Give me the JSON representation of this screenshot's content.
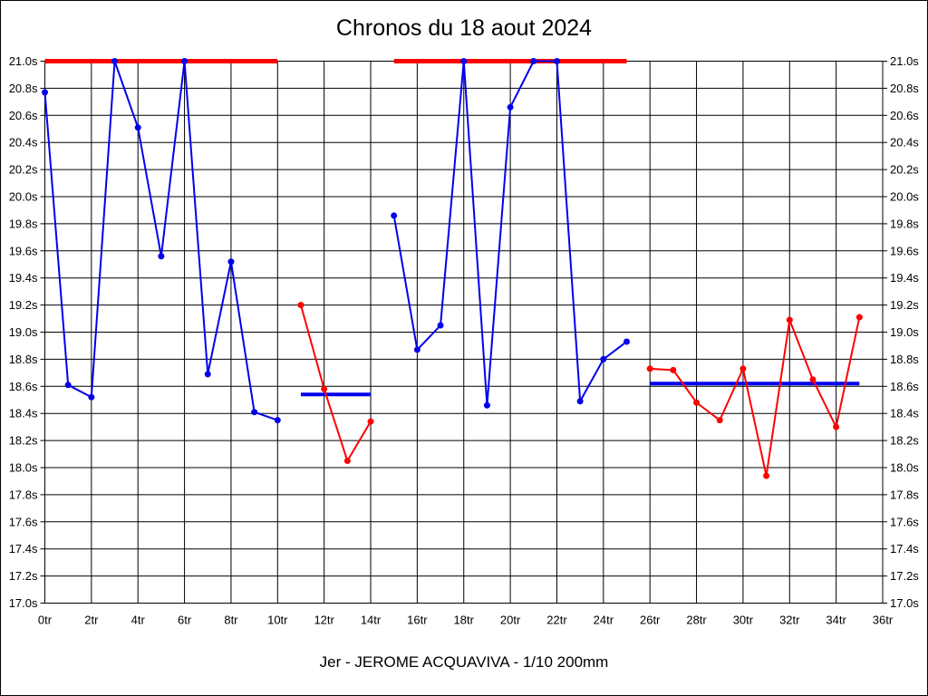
{
  "chart_data": {
    "type": "line",
    "title": "Chronos du 18 aout 2024",
    "caption": "Jer - JEROME ACQUAVIVA - 1/10 200mm",
    "xlabel": "",
    "ylabel": "",
    "x_unit_suffix": "tr",
    "y_unit_suffix": "s",
    "xlim": [
      0,
      36
    ],
    "ylim": [
      17.0,
      21.0
    ],
    "x_tick_step": 2,
    "y_tick_step": 0.2,
    "grid": true,
    "legend": "none",
    "colors": {
      "blue": "#0000ee",
      "red": "#ff0000",
      "grid": "#000000",
      "text": "#000000"
    },
    "series": [
      {
        "name": "blue-run-1",
        "color": "blue",
        "x": [
          0,
          1,
          2,
          3,
          4,
          5,
          6,
          7,
          8,
          9,
          10
        ],
        "y": [
          20.77,
          18.61,
          18.52,
          21.0,
          20.51,
          19.56,
          21.0,
          18.69,
          19.52,
          18.41,
          18.35
        ]
      },
      {
        "name": "red-run-1",
        "color": "red",
        "x": [
          11,
          12,
          13,
          14
        ],
        "y": [
          19.2,
          18.58,
          18.05,
          18.34
        ]
      },
      {
        "name": "blue-run-2",
        "color": "blue",
        "x": [
          15,
          16,
          17,
          18,
          19,
          20,
          21,
          22,
          23,
          24,
          25
        ],
        "y": [
          19.86,
          18.87,
          19.05,
          21.0,
          18.46,
          20.66,
          21.0,
          21.0,
          18.49,
          18.8,
          18.93
        ]
      },
      {
        "name": "red-run-2",
        "color": "red",
        "x": [
          26,
          27,
          28,
          29,
          30,
          31,
          32,
          33,
          34,
          35
        ],
        "y": [
          18.73,
          18.72,
          18.48,
          18.35,
          18.73,
          17.94,
          19.09,
          18.65,
          18.3,
          19.11
        ]
      }
    ],
    "reference_lines": [
      {
        "name": "red-max-line-1",
        "color": "red",
        "y": 21.0,
        "x_start": 0,
        "x_end": 10,
        "stroke_width": 5
      },
      {
        "name": "red-max-line-2",
        "color": "red",
        "y": 21.0,
        "x_start": 15,
        "x_end": 25,
        "stroke_width": 5
      },
      {
        "name": "blue-mean-line-1",
        "color": "blue",
        "y": 18.54,
        "x_start": 11,
        "x_end": 14,
        "stroke_width": 4
      },
      {
        "name": "blue-mean-line-2",
        "color": "blue",
        "y": 18.62,
        "x_start": 26,
        "x_end": 35,
        "stroke_width": 4
      }
    ]
  }
}
